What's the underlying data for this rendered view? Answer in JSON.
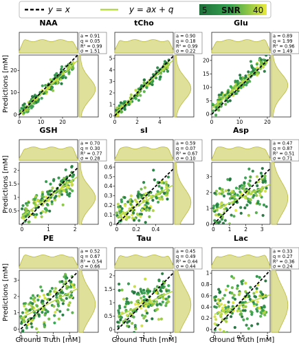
{
  "legend": {
    "identity_label": "y = x",
    "fit_label": "y = ax + q",
    "colorbar_label": "SNR",
    "colorbar_min": "5",
    "colorbar_max": "40",
    "colors": {
      "low": "#1f6e3a",
      "mid": "#34a24f",
      "high": "#e9ea3a"
    }
  },
  "axis_labels": {
    "y": "Predictions [mM]",
    "x": "Ground Truth [mM]"
  },
  "marginal_fill": "#dfe09a",
  "chart_data": [
    {
      "type": "scatter",
      "title": "NAA",
      "xlim": [
        0,
        27
      ],
      "ylim": [
        -1,
        27
      ],
      "xticks": [
        0,
        10,
        20
      ],
      "yticks": [
        0,
        10,
        20
      ],
      "stats": {
        "a": "0.91",
        "q": "0.05",
        "R2": "0.99",
        "sigma": "1.51"
      },
      "fit": {
        "a": 0.91,
        "q": 0.05
      },
      "spread": 1.51
    },
    {
      "type": "scatter",
      "title": "tCho",
      "xlim": [
        0,
        5.2
      ],
      "ylim": [
        -0.1,
        5.3
      ],
      "xticks": [
        0,
        2,
        4
      ],
      "yticks": [
        0,
        1,
        2,
        3,
        4,
        5
      ],
      "stats": {
        "a": "0.90",
        "q": "0.18",
        "R2": "0.99",
        "sigma": "0.22"
      },
      "fit": {
        "a": 0.9,
        "q": 0.18
      },
      "spread": 0.22
    },
    {
      "type": "scatter",
      "title": "Glu",
      "xlim": [
        0,
        21
      ],
      "ylim": [
        -1,
        22
      ],
      "xticks": [
        0,
        10,
        20
      ],
      "yticks": [
        0,
        5,
        10,
        15,
        20
      ],
      "stats": {
        "a": "0.89",
        "q": "1.99",
        "R2": "0.96",
        "sigma": "1.49"
      },
      "fit": {
        "a": 0.89,
        "q": 1.99
      },
      "spread": 1.49
    },
    {
      "type": "scatter",
      "title": "GSH",
      "xlim": [
        -0.1,
        2.1
      ],
      "ylim": [
        0,
        2.3
      ],
      "xticks": [
        0,
        1,
        2
      ],
      "yticks": [
        0.5,
        1.0,
        1.5,
        2.0
      ],
      "stats": {
        "a": "0.70",
        "q": "0.30",
        "R2": "0.77",
        "sigma": "0.28"
      },
      "fit": {
        "a": 0.7,
        "q": 0.3
      },
      "spread": 0.28
    },
    {
      "type": "scatter",
      "title": "sI",
      "xlim": [
        -0.02,
        0.58
      ],
      "ylim": [
        0,
        0.65
      ],
      "xticks": [
        0.0,
        0.2,
        0.4
      ],
      "yticks": [
        0.0,
        0.1,
        0.2,
        0.3,
        0.4,
        0.5,
        0.6
      ],
      "stats": {
        "a": "0.59",
        "q": "0.07",
        "R2": "0.67",
        "sigma": "0.10"
      },
      "fit": {
        "a": 0.59,
        "q": 0.07
      },
      "spread": 0.1
    },
    {
      "type": "scatter",
      "title": "Asp",
      "xlim": [
        -0.1,
        3.5
      ],
      "ylim": [
        0,
        3.9
      ],
      "xticks": [
        0,
        1,
        2,
        3
      ],
      "yticks": [
        0,
        1,
        2,
        3
      ],
      "stats": {
        "a": "0.47",
        "q": "0.87",
        "R2": "0.51",
        "sigma": "0.71"
      },
      "fit": {
        "a": 0.47,
        "q": 0.87
      },
      "spread": 0.71
    },
    {
      "type": "scatter",
      "title": "PE",
      "xlim": [
        -0.1,
        3.5
      ],
      "ylim": [
        -0.2,
        3.6
      ],
      "xticks": [
        0,
        1,
        2,
        3
      ],
      "yticks": [
        0,
        1,
        2,
        3
      ],
      "stats": {
        "a": "0.52",
        "q": "0.67",
        "R2": "0.54",
        "sigma": "0.66"
      },
      "fit": {
        "a": 0.52,
        "q": 0.67
      },
      "spread": 0.66
    },
    {
      "type": "scatter",
      "title": "Tau",
      "xlim": [
        -0.1,
        2.1
      ],
      "ylim": [
        -0.1,
        2.2
      ],
      "xticks": [
        0,
        1,
        2
      ],
      "yticks": [
        0.0,
        0.5,
        1.0,
        1.5,
        2.0
      ],
      "stats": {
        "a": "0.45",
        "q": "0.49",
        "R2": "0.44",
        "sigma": "0.44"
      },
      "fit": {
        "a": 0.45,
        "q": 0.49
      },
      "spread": 0.44
    },
    {
      "type": "scatter",
      "title": "Lac",
      "xlim": [
        -0.05,
        1.05
      ],
      "ylim": [
        -0.05,
        1.05
      ],
      "xticks": [
        0.0,
        0.5,
        1.0
      ],
      "yticks": [
        0.0,
        0.2,
        0.4,
        0.6,
        0.8,
        1.0
      ],
      "stats": {
        "a": "0.33",
        "q": "0.27",
        "R2": "0.36",
        "sigma": "0.24"
      },
      "fit": {
        "a": 0.33,
        "q": 0.27
      },
      "spread": 0.24
    }
  ]
}
